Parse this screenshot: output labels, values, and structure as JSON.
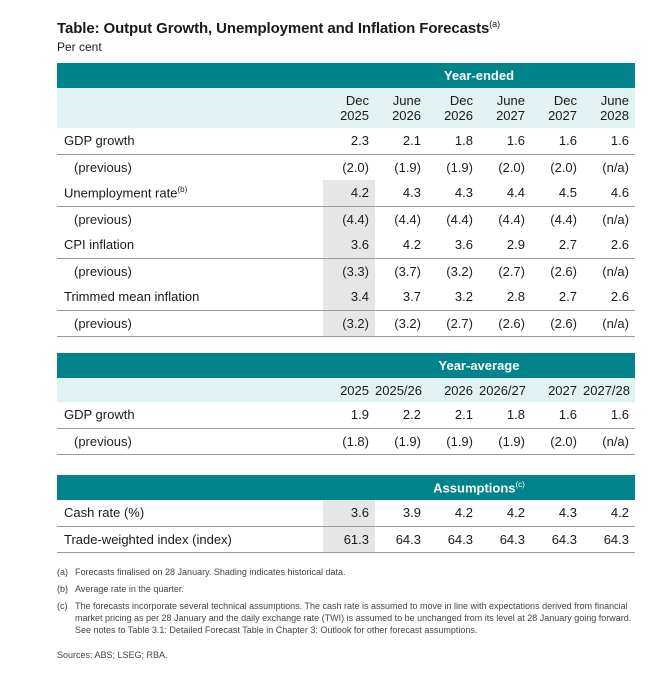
{
  "title": "Table: Output Growth, Unemployment and Inflation Forecasts",
  "title_note": "(a)",
  "subtitle": "Per cent",
  "colors": {
    "band": "#00838a",
    "header_bg": "#e0f2f1",
    "shade": "#e6e6e6"
  },
  "year_ended": {
    "band_label": "Year-ended",
    "columns": [
      [
        "Dec",
        "2025"
      ],
      [
        "June",
        "2026"
      ],
      [
        "Dec",
        "2026"
      ],
      [
        "June",
        "2027"
      ],
      [
        "Dec",
        "2027"
      ],
      [
        "June",
        "2028"
      ]
    ],
    "rows": [
      {
        "label": "GDP growth",
        "note": "",
        "values": [
          "2.3",
          "2.1",
          "1.8",
          "1.6",
          "1.6",
          "1.6"
        ],
        "sub": false,
        "shaded": false
      },
      {
        "label": "(previous)",
        "note": "",
        "values": [
          "(2.0)",
          "(1.9)",
          "(1.9)",
          "(2.0)",
          "(2.0)",
          "(n/a)"
        ],
        "sub": true,
        "shaded": false
      },
      {
        "label": "Unemployment rate",
        "note": "(b)",
        "values": [
          "4.2",
          "4.3",
          "4.3",
          "4.4",
          "4.5",
          "4.6"
        ],
        "sub": false,
        "shaded": true
      },
      {
        "label": "(previous)",
        "note": "",
        "values": [
          "(4.4)",
          "(4.4)",
          "(4.4)",
          "(4.4)",
          "(4.4)",
          "(n/a)"
        ],
        "sub": true,
        "shaded": true
      },
      {
        "label": "CPI inflation",
        "note": "",
        "values": [
          "3.6",
          "4.2",
          "3.6",
          "2.9",
          "2.7",
          "2.6"
        ],
        "sub": false,
        "shaded": true
      },
      {
        "label": "(previous)",
        "note": "",
        "values": [
          "(3.3)",
          "(3.7)",
          "(3.2)",
          "(2.7)",
          "(2.6)",
          "(n/a)"
        ],
        "sub": true,
        "shaded": true
      },
      {
        "label": "Trimmed mean inflation",
        "note": "",
        "values": [
          "3.4",
          "3.7",
          "3.2",
          "2.8",
          "2.7",
          "2.6"
        ],
        "sub": false,
        "shaded": true
      },
      {
        "label": "(previous)",
        "note": "",
        "values": [
          "(3.2)",
          "(3.2)",
          "(2.7)",
          "(2.6)",
          "(2.6)",
          "(n/a)"
        ],
        "sub": true,
        "shaded": true
      }
    ]
  },
  "year_average": {
    "band_label": "Year-average",
    "columns": [
      "2025",
      "2025/26",
      "2026",
      "2026/27",
      "2027",
      "2027/28"
    ],
    "rows": [
      {
        "label": "GDP growth",
        "values": [
          "1.9",
          "2.2",
          "2.1",
          "1.8",
          "1.6",
          "1.6"
        ],
        "sub": false
      },
      {
        "label": "(previous)",
        "values": [
          "(1.8)",
          "(1.9)",
          "(1.9)",
          "(1.9)",
          "(2.0)",
          "(n/a)"
        ],
        "sub": true
      }
    ]
  },
  "assumptions": {
    "band_label": "Assumptions",
    "band_note": "(c)",
    "rows": [
      {
        "label": "Cash rate (%)",
        "values": [
          "3.6",
          "3.9",
          "4.2",
          "4.2",
          "4.3",
          "4.2"
        ]
      },
      {
        "label": "Trade-weighted index (index)",
        "values": [
          "61.3",
          "64.3",
          "64.3",
          "64.3",
          "64.3",
          "64.3"
        ]
      }
    ]
  },
  "notes": [
    {
      "key": "(a)",
      "text": "Forecasts finalised on 28 January. Shading indicates historical data."
    },
    {
      "key": "(b)",
      "text": "Average rate in the quarter."
    },
    {
      "key": "(c)",
      "text": "The forecasts incorporate several technical assumptions. The cash rate is assumed to move in line with expectations derived from financial market pricing as per 28 January and the daily exchange rate (TWI) is assumed to be unchanged from its level at 28 January going forward. See notes to Table 3.1: Detailed Forecast Table in Chapter 3: Outlook for other forecast assumptions."
    }
  ],
  "sources": "Sources: ABS; LSEG; RBA."
}
